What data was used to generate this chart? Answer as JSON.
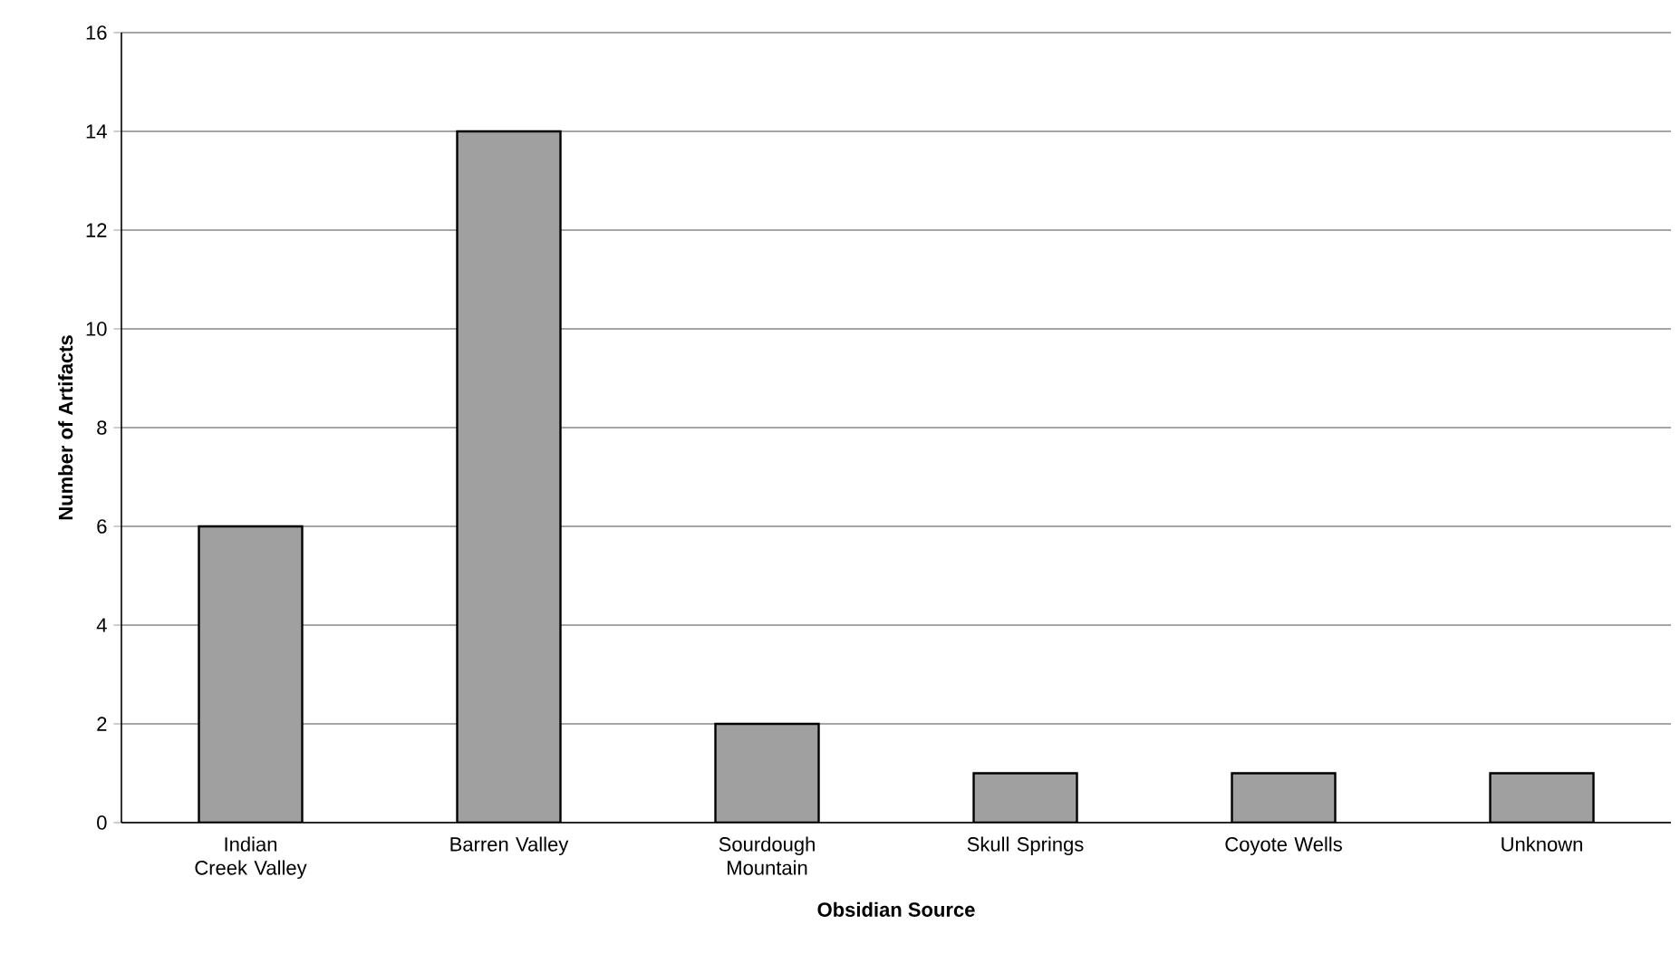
{
  "chart_data": {
    "type": "bar",
    "xlabel": "Obsidian Source",
    "ylabel": "Number of Artifacts",
    "categories": [
      "Indian Creek Valley",
      "Barren Valley",
      "Sourdough Mountain",
      "Skull Springs",
      "Coyote Wells",
      "Unknown"
    ],
    "values": [
      6,
      14,
      2,
      1,
      1,
      1
    ],
    "color": "#a0a0a0",
    "ylim": [
      0,
      16
    ],
    "yticks": [
      0,
      2,
      4,
      6,
      8,
      10,
      12,
      14,
      16
    ],
    "grid": "y"
  }
}
